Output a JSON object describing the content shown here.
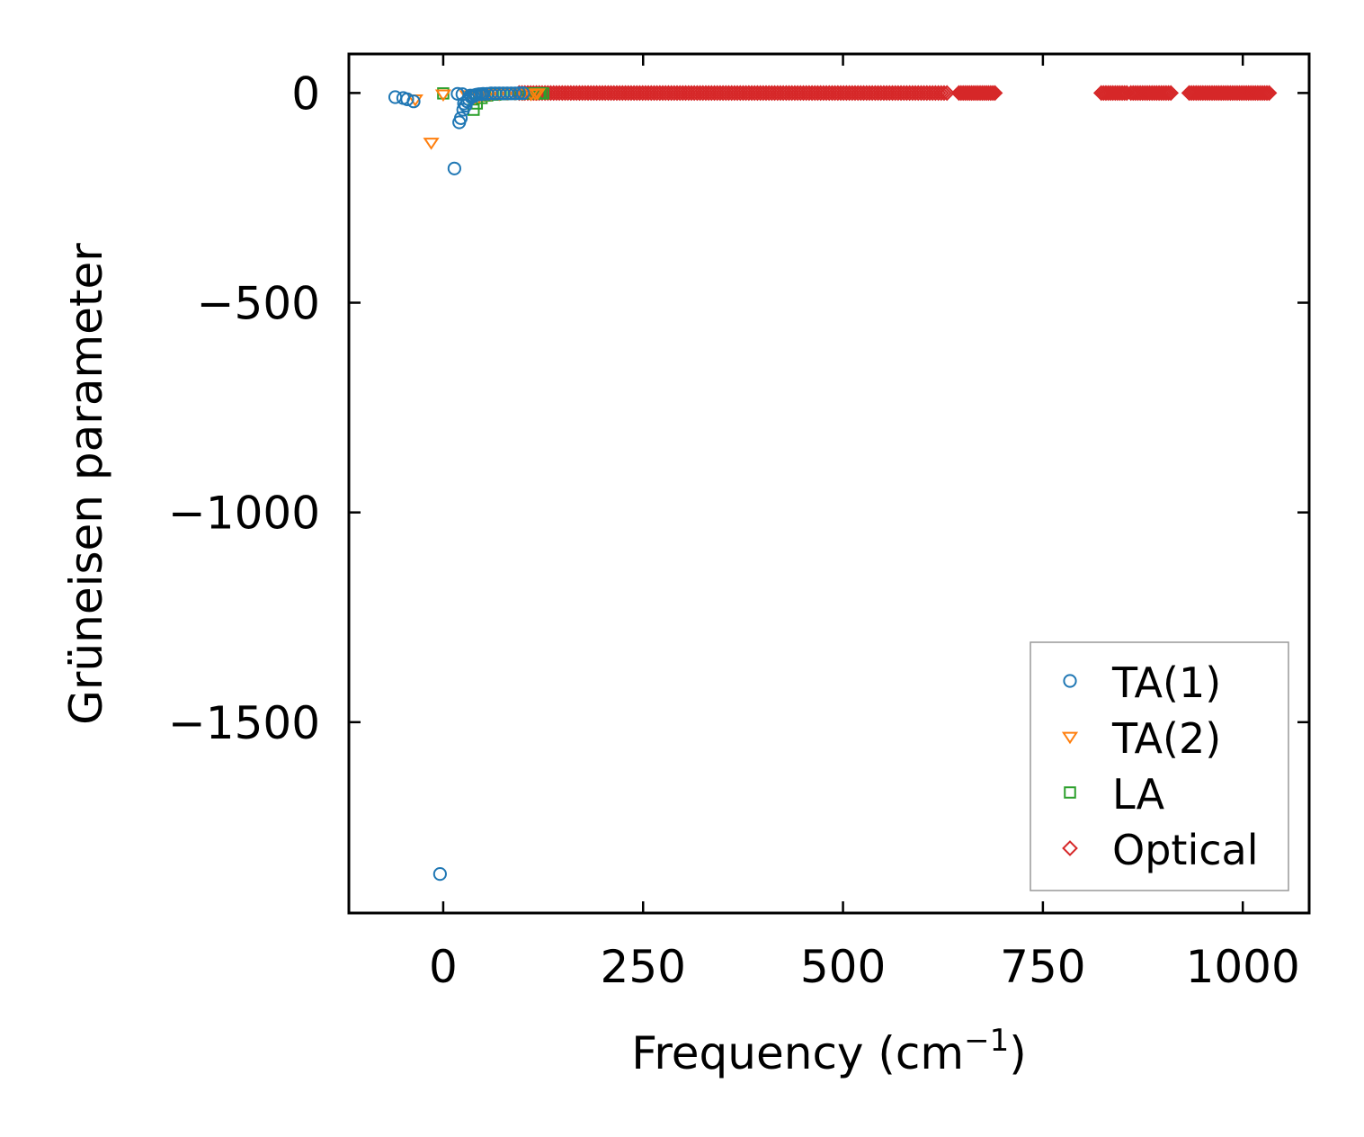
{
  "colors": {
    "ta1": "#1f77b4",
    "ta2": "#ff7f0e",
    "la": "#2ca02c",
    "optical": "#d62728",
    "axis": "#000000",
    "legend_border": "#999999"
  },
  "chart_data": {
    "type": "scatter",
    "title": "",
    "xlabel": "Frequency (cm",
    "xlabel_sup": "−1",
    "xlabel_tail": ")",
    "ylabel": "Grüneisen parameter",
    "xlim": [
      -118,
      1083
    ],
    "ylim": [
      -1955,
      93
    ],
    "xticks": [
      0,
      250,
      500,
      750,
      1000
    ],
    "xtick_labels": [
      "0",
      "250",
      "500",
      "750",
      "1000"
    ],
    "yticks": [
      0,
      -500,
      -1000,
      -1500
    ],
    "ytick_labels": [
      "0",
      "−500",
      "−1000",
      "−1500"
    ],
    "grid": false,
    "legend_position": "lower-right",
    "series": [
      {
        "name": "TA(1)",
        "marker": "circle",
        "color": "#1f77b4",
        "points": [
          [
            -60,
            -10
          ],
          [
            -50,
            -12
          ],
          [
            -45,
            -15
          ],
          [
            -37,
            -20
          ],
          [
            -4,
            -1862
          ],
          [
            14,
            -180
          ],
          [
            20,
            -70
          ],
          [
            22,
            -60
          ],
          [
            25,
            -40
          ],
          [
            28,
            -30
          ],
          [
            30,
            -20
          ],
          [
            32,
            -15
          ],
          [
            35,
            -10
          ],
          [
            38,
            -8
          ],
          [
            40,
            -5
          ],
          [
            42,
            -4
          ],
          [
            45,
            -3
          ],
          [
            48,
            -3
          ],
          [
            50,
            -2
          ],
          [
            55,
            -2
          ],
          [
            60,
            -1
          ],
          [
            65,
            -1
          ],
          [
            70,
            -1
          ],
          [
            75,
            -1
          ],
          [
            80,
            -1
          ],
          [
            85,
            -1
          ],
          [
            90,
            -1
          ],
          [
            95,
            -0.5
          ],
          [
            100,
            -0.5
          ],
          [
            18,
            -2
          ],
          [
            24,
            -3
          ],
          [
            34,
            -6
          ],
          [
            26,
            -25
          ]
        ]
      },
      {
        "name": "TA(2)",
        "marker": "triangle-down",
        "color": "#ff7f0e",
        "points": [
          [
            -15,
            -118
          ],
          [
            -35,
            -15
          ],
          [
            0,
            -3
          ],
          [
            30,
            -5
          ],
          [
            40,
            -10
          ],
          [
            45,
            -8
          ],
          [
            50,
            -4
          ],
          [
            55,
            -3
          ],
          [
            60,
            -2
          ],
          [
            70,
            -2
          ],
          [
            80,
            -1
          ],
          [
            90,
            -1
          ],
          [
            100,
            -1
          ],
          [
            110,
            -2
          ],
          [
            115,
            -1
          ],
          [
            118,
            -0.5
          ]
        ]
      },
      {
        "name": "LA",
        "marker": "square",
        "color": "#2ca02c",
        "points": [
          [
            0,
            -1
          ],
          [
            38,
            -40
          ],
          [
            42,
            -25
          ],
          [
            48,
            -12
          ],
          [
            55,
            -6
          ],
          [
            65,
            -4
          ],
          [
            75,
            -3
          ],
          [
            85,
            -2
          ],
          [
            95,
            -2
          ],
          [
            105,
            -1
          ],
          [
            115,
            -1
          ],
          [
            120,
            -1
          ],
          [
            122,
            -0.5
          ],
          [
            125,
            -1
          ]
        ]
      },
      {
        "name": "Optical",
        "marker": "diamond",
        "color": "#d62728",
        "segments": [
          {
            "x_from": 95,
            "x_to": 630,
            "y": 0,
            "count": 150
          },
          {
            "x_from": 645,
            "x_to": 690,
            "y": 0,
            "count": 18
          },
          {
            "x_from": 823,
            "x_to": 855,
            "y": 0,
            "count": 12
          },
          {
            "x_from": 860,
            "x_to": 910,
            "y": 0,
            "count": 18
          },
          {
            "x_from": 933,
            "x_to": 1033,
            "y": 0,
            "count": 36
          }
        ]
      }
    ]
  }
}
